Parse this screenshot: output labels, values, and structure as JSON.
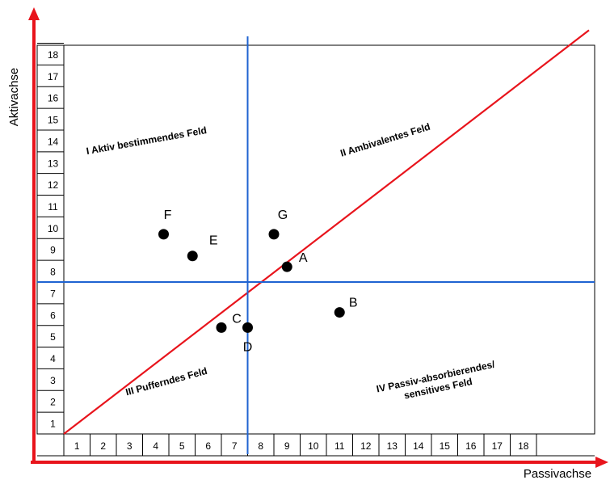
{
  "chart_data": {
    "type": "scatter",
    "xlabel": "Passivachse",
    "ylabel": "Aktivachse",
    "x_ticks": [
      "1",
      "2",
      "3",
      "4",
      "5",
      "6",
      "7",
      "8",
      "9",
      "10",
      "11",
      "12",
      "13",
      "14",
      "15",
      "16",
      "17",
      "18"
    ],
    "y_ticks": [
      "1",
      "2",
      "3",
      "4",
      "5",
      "6",
      "7",
      "8",
      "9",
      "10",
      "11",
      "12",
      "13",
      "14",
      "15",
      "16",
      "17",
      "18"
    ],
    "xlim": [
      0,
      20
    ],
    "ylim": [
      0,
      18.6
    ],
    "grid": false,
    "divider_x": 7,
    "divider_y": 7,
    "diagonal": {
      "from": [
        0,
        0
      ],
      "to": [
        20,
        18.6
      ]
    },
    "points": [
      {
        "label": "A",
        "x": 8.5,
        "y": 7.7
      },
      {
        "label": "B",
        "x": 10.5,
        "y": 5.6
      },
      {
        "label": "C",
        "x": 6.0,
        "y": 4.9
      },
      {
        "label": "D",
        "x": 7.0,
        "y": 4.9
      },
      {
        "label": "E",
        "x": 4.9,
        "y": 8.2
      },
      {
        "label": "F",
        "x": 3.8,
        "y": 9.2
      },
      {
        "label": "G",
        "x": 8.0,
        "y": 9.2
      }
    ],
    "quadrants": [
      {
        "id": "I",
        "lines": [
          "I Aktiv bestimmendes Feld"
        ]
      },
      {
        "id": "II",
        "lines": [
          "II Ambivalentes Feld"
        ]
      },
      {
        "id": "III",
        "lines": [
          "III Pufferndes Feld"
        ]
      },
      {
        "id": "IV",
        "lines": [
          "IV Passiv-absorbierendes/",
          "sensitives Feld"
        ]
      }
    ],
    "colors": {
      "axis": "#e8141c",
      "diagonal": "#e8141c",
      "divider": "#1f63d1",
      "points": "#000000",
      "frame": "#000000"
    }
  }
}
